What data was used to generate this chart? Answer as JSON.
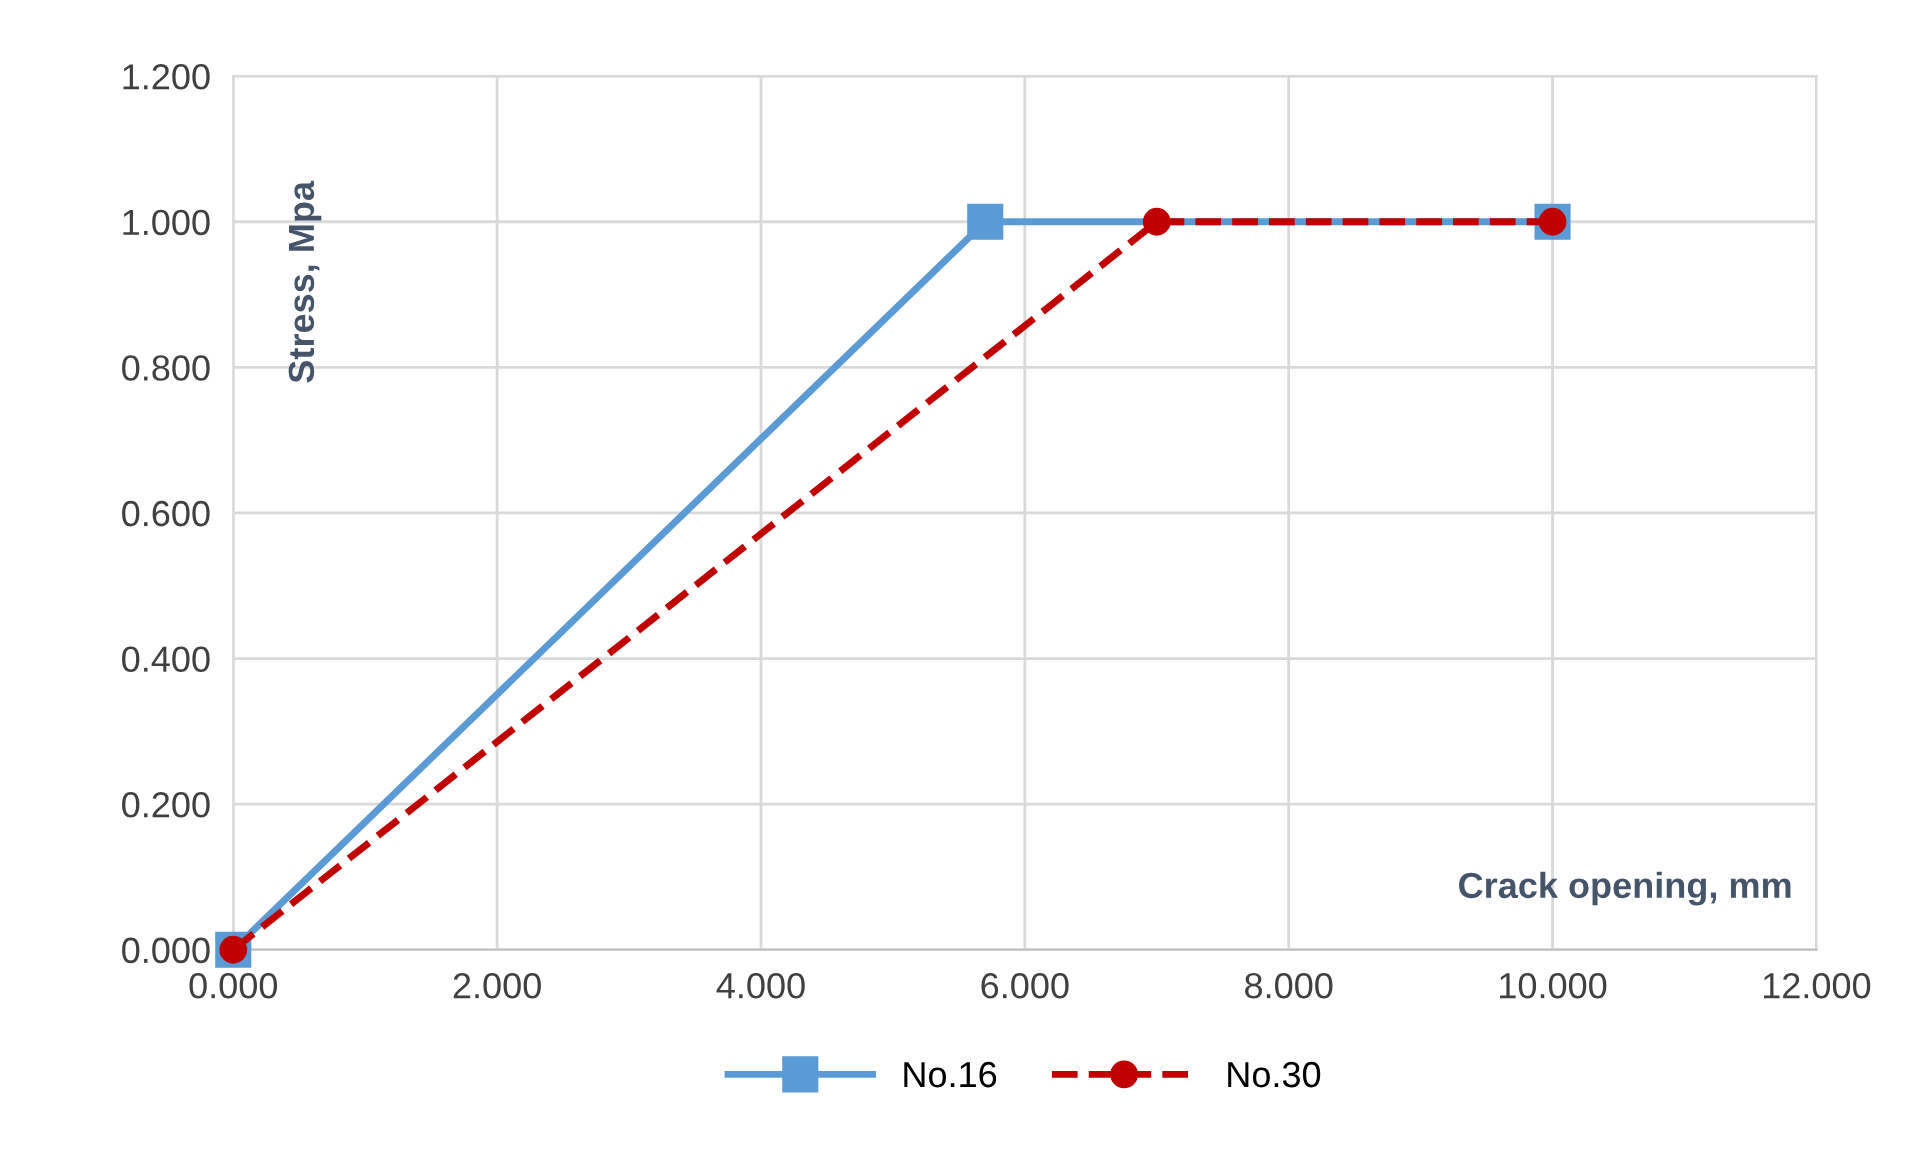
{
  "chart_data": {
    "type": "line",
    "xlabel": "Crack opening, mm",
    "ylabel": "Stress, Mpa",
    "series": [
      {
        "name": "No.16",
        "color": "#5b9bd5",
        "marker": "square",
        "line_style": "solid",
        "x": [
          0,
          5.7,
          10
        ],
        "values": [
          0,
          1,
          1
        ]
      },
      {
        "name": "No.30",
        "color": "#c00000",
        "marker": "circle",
        "line_style": "dashed",
        "x": [
          0,
          7,
          10
        ],
        "values": [
          0,
          1,
          1
        ]
      }
    ],
    "xlim": [
      0,
      12
    ],
    "ylim": [
      0,
      1.2
    ],
    "xticks": [
      {
        "value": 0,
        "label": "0.000"
      },
      {
        "value": 2,
        "label": "2.000"
      },
      {
        "value": 4,
        "label": "4.000"
      },
      {
        "value": 6,
        "label": "6.000"
      },
      {
        "value": 8,
        "label": "8.000"
      },
      {
        "value": 10,
        "label": "10.000"
      },
      {
        "value": 12,
        "label": "12.000"
      }
    ],
    "yticks": [
      {
        "value": 0,
        "label": "0.000"
      },
      {
        "value": 0.2,
        "label": "0.200"
      },
      {
        "value": 0.4,
        "label": "0.400"
      },
      {
        "value": 0.6,
        "label": "0.600"
      },
      {
        "value": 0.8,
        "label": "0.800"
      },
      {
        "value": 1,
        "label": "1.000"
      },
      {
        "value": 1.2,
        "label": "1.200"
      }
    ],
    "grid": true,
    "legend": "bottom"
  }
}
